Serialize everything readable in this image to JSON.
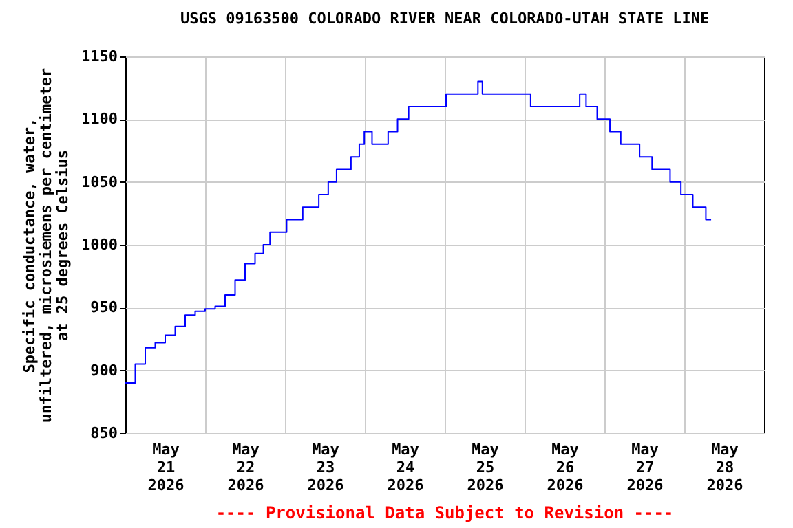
{
  "chart_data": {
    "type": "step",
    "title": "USGS 09163500 COLORADO RIVER NEAR COLORADO-UTAH STATE LINE",
    "ylabel": "Specific conductance, water,\nunfiltered, microsiemens per centimeter\nat 25 degrees Celsius",
    "annotations": [
      "---- Provisional Data Subject to Revision ----"
    ],
    "x": [
      "2026-05-21T00:00",
      "2026-05-21T03:00",
      "2026-05-21T06:00",
      "2026-05-21T09:00",
      "2026-05-21T12:00",
      "2026-05-21T15:00",
      "2026-05-21T18:00",
      "2026-05-21T21:00",
      "2026-05-22T00:00",
      "2026-05-22T03:00",
      "2026-05-22T06:00",
      "2026-05-22T09:00",
      "2026-05-22T12:00",
      "2026-05-22T15:00",
      "2026-05-22T17:30",
      "2026-05-22T19:30",
      "2026-05-23T00:30",
      "2026-05-23T05:20",
      "2026-05-23T10:10",
      "2026-05-23T13:00",
      "2026-05-23T15:30",
      "2026-05-23T19:50",
      "2026-05-23T22:20",
      "2026-05-23T23:50",
      "2026-05-24T02:10",
      "2026-05-24T07:00",
      "2026-05-24T09:50",
      "2026-05-24T13:10",
      "2026-05-25T00:25",
      "2026-05-25T10:00",
      "2026-05-25T11:20",
      "2026-05-26T01:50",
      "2026-05-26T16:35",
      "2026-05-26T18:30",
      "2026-05-26T21:50",
      "2026-05-27T01:40",
      "2026-05-27T04:55",
      "2026-05-27T10:35",
      "2026-05-27T14:20",
      "2026-05-27T19:45",
      "2026-05-27T23:00",
      "2026-05-28T02:35",
      "2026-05-28T06:30",
      "2026-05-28T08:05"
    ],
    "series": [
      {
        "color": "#0000ff",
        "values": [
          890,
          905,
          918,
          922,
          928,
          935,
          944,
          947,
          949,
          951,
          960,
          972,
          985,
          993,
          1000,
          1010,
          1020,
          1030,
          1040,
          1050,
          1060,
          1070,
          1080,
          1090,
          1080,
          1090,
          1100,
          1110,
          1120,
          1130,
          1120,
          1110,
          1120,
          1110,
          1100,
          1090,
          1080,
          1070,
          1060,
          1050,
          1040,
          1030,
          1020,
          1020
        ]
      }
    ],
    "xlim": [
      "2026-05-21T00:00",
      "2026-05-29T00:00"
    ],
    "xticks": [
      {
        "value": "2026-05-21T12:00",
        "label": "May\n21\n2026"
      },
      {
        "value": "2026-05-22T00:00",
        "label": null
      },
      {
        "value": "2026-05-22T12:00",
        "label": "May\n22\n2026"
      },
      {
        "value": "2026-05-23T00:00",
        "label": null
      },
      {
        "value": "2026-05-23T12:00",
        "label": "May\n23\n2026"
      },
      {
        "value": "2026-05-24T00:00",
        "label": null
      },
      {
        "value": "2026-05-24T12:00",
        "label": "May\n24\n2026"
      },
      {
        "value": "2026-05-25T00:00",
        "label": null
      },
      {
        "value": "2026-05-25T12:00",
        "label": "May\n25\n2026"
      },
      {
        "value": "2026-05-26T00:00",
        "label": null
      },
      {
        "value": "2026-05-26T12:00",
        "label": "May\n26\n2026"
      },
      {
        "value": "2026-05-27T00:00",
        "label": null
      },
      {
        "value": "2026-05-27T12:00",
        "label": "May\n27\n2026"
      },
      {
        "value": "2026-05-28T00:00",
        "label": null
      },
      {
        "value": "2026-05-28T12:00",
        "label": "May\n28\n2026"
      }
    ],
    "ylim": [
      850,
      1150
    ],
    "yticks": [
      850,
      900,
      950,
      1000,
      1050,
      1100,
      1150
    ],
    "grid": true
  }
}
